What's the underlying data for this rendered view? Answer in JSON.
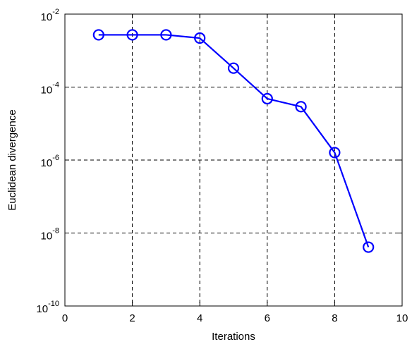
{
  "chart_data": {
    "type": "line",
    "title": "",
    "xlabel": "Iterations",
    "ylabel": "Euclidean divergence",
    "xlim": [
      0,
      10
    ],
    "ylim": [
      1e-10,
      0.01
    ],
    "yscale": "log",
    "grid": true,
    "grid_style": "dashed",
    "x_ticks": [
      0,
      2,
      4,
      6,
      8,
      10
    ],
    "y_ticks": [
      {
        "value": 0.01,
        "base": "10",
        "exp": "-2"
      },
      {
        "value": 0.0001,
        "base": "10",
        "exp": "-4"
      },
      {
        "value": 1e-06,
        "base": "10",
        "exp": "-6"
      },
      {
        "value": 1e-08,
        "base": "10",
        "exp": "-8"
      },
      {
        "value": 1e-10,
        "base": "10",
        "exp": "-10"
      }
    ],
    "series": [
      {
        "color": "#0000ff",
        "marker": "circle",
        "x": [
          1,
          2,
          3,
          4,
          5,
          6,
          7,
          8,
          9
        ],
        "y": [
          0.0027,
          0.0027,
          0.0027,
          0.0022,
          0.00033,
          4.8e-05,
          2.9e-05,
          1.6e-06,
          4.1e-09
        ]
      }
    ]
  }
}
